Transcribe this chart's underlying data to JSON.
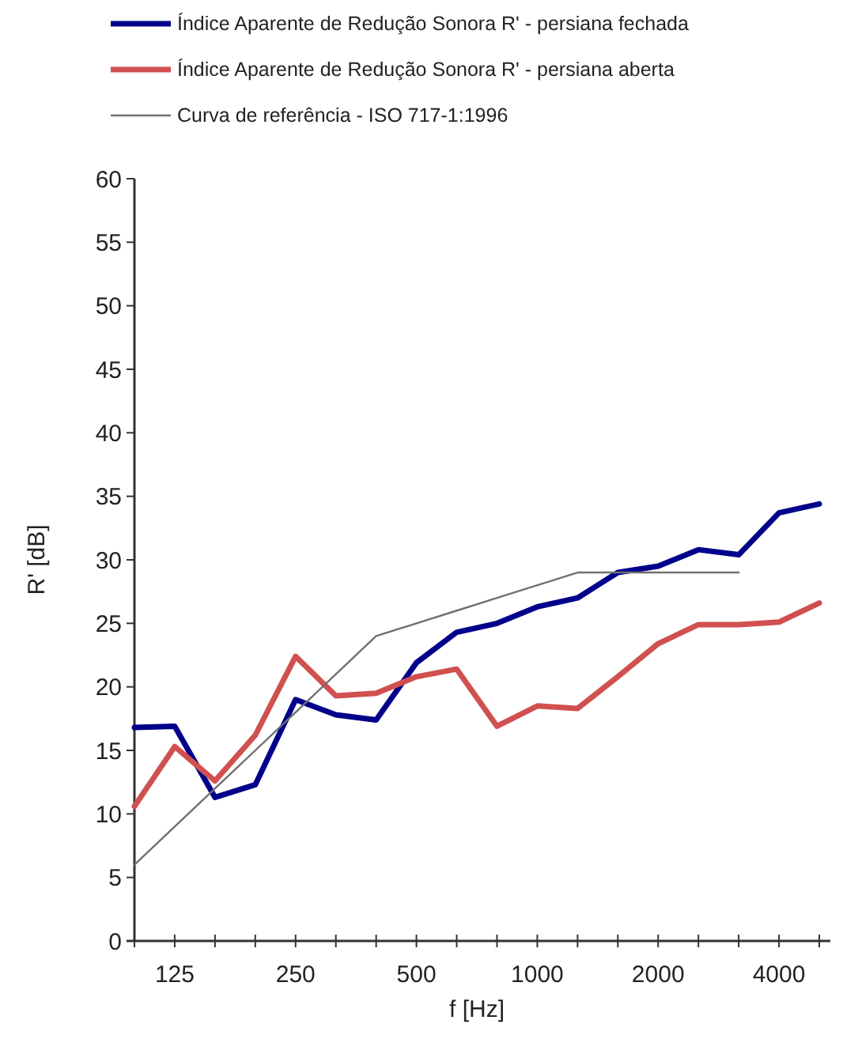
{
  "chart_data": {
    "type": "line",
    "xlabel": "f [Hz]",
    "ylabel": "R' [dB]",
    "categories": [
      null,
      "125",
      null,
      null,
      "250",
      null,
      null,
      "500",
      null,
      null,
      "1000",
      null,
      null,
      "2000",
      null,
      null,
      "4000",
      null
    ],
    "series": [
      {
        "name": "Índice Aparente de Redução Sonora R' - persiana fechada",
        "color": "#00008b",
        "values": [
          16.8,
          16.9,
          11.3,
          12.3,
          19.0,
          17.8,
          17.4,
          21.9,
          24.3,
          25.0,
          26.3,
          27.0,
          29.0,
          29.5,
          30.8,
          30.4,
          33.7,
          34.4
        ]
      },
      {
        "name": "Índice Aparente de Redução Sonora R' - persiana aberta",
        "color": "#d05050",
        "values": [
          10.6,
          15.3,
          12.6,
          16.2,
          22.4,
          19.3,
          19.5,
          20.8,
          21.4,
          16.9,
          18.5,
          18.3,
          20.8,
          23.4,
          24.9,
          24.9,
          25.1,
          26.6
        ]
      },
      {
        "name": "Curva de referência - ISO 717-1:1996",
        "color": "#707070",
        "values": [
          6,
          9,
          12,
          15,
          18,
          21,
          24,
          25,
          26,
          27,
          28,
          29,
          29,
          29,
          29,
          29,
          null,
          null
        ]
      }
    ],
    "ylim": [
      0,
      60
    ],
    "yticks": [
      0,
      5,
      10,
      15,
      20,
      25,
      30,
      35,
      40,
      45,
      50,
      55,
      60
    ],
    "grid": false,
    "legend": "top",
    "marker": "none",
    "line_style": "solid"
  }
}
